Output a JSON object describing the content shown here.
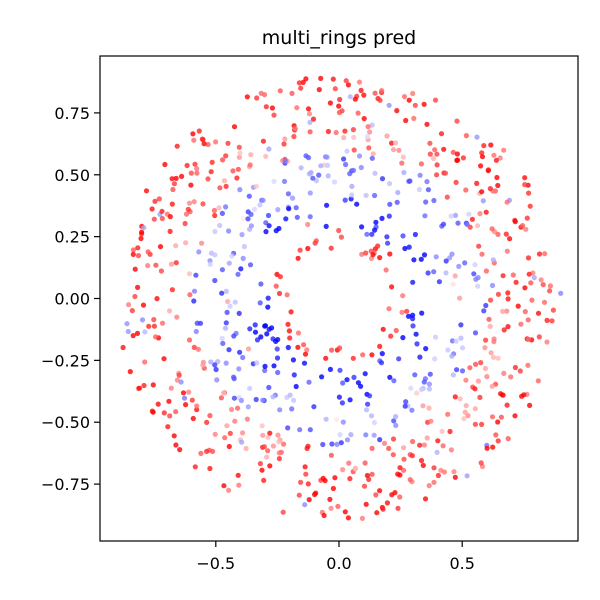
{
  "chart_data": {
    "type": "scatter",
    "title": "multi_rings pred",
    "xlabel": "",
    "ylabel": "",
    "xlim": [
      -0.97,
      0.97
    ],
    "ylim": [
      -0.98,
      0.98
    ],
    "x_ticks": [
      -0.5,
      0.0,
      0.5
    ],
    "x_tick_labels": [
      "−0.5",
      "0.0",
      "0.5"
    ],
    "y_ticks": [
      -0.75,
      -0.5,
      -0.25,
      0.0,
      0.25,
      0.5,
      0.75
    ],
    "y_tick_labels": [
      "−0.75",
      "−0.50",
      "−0.25",
      "0.00",
      "0.25",
      "0.50",
      "0.75"
    ],
    "grid": false,
    "colormap": "bwr",
    "color_blue": "#0000ff",
    "color_white": "#ffffff",
    "color_red": "#ff0000",
    "ring_radius_ranges": [
      [
        0.2,
        0.28
      ],
      [
        0.28,
        0.42
      ],
      [
        0.42,
        0.6
      ],
      [
        0.6,
        0.72
      ],
      [
        0.72,
        0.9
      ]
    ],
    "ring_pred_values": [
      0.85,
      -0.95,
      -0.5,
      0.6,
      0.85
    ],
    "point_count": 900
  }
}
